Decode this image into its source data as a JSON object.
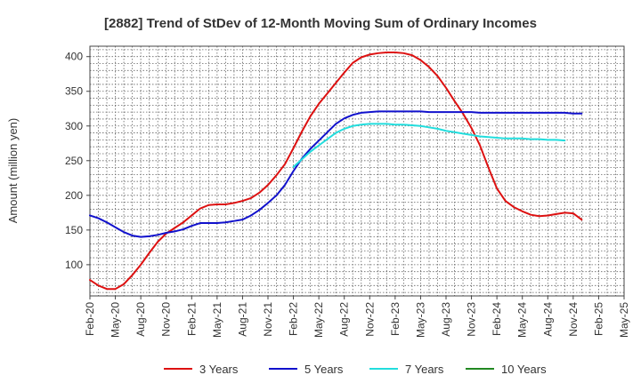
{
  "chart_data": {
    "type": "line",
    "title": "[2882]  Trend of StDev of 12-Month Moving Sum of Ordinary Incomes",
    "xlabel": "",
    "ylabel": "Amount (million yen)",
    "ylim": [
      55,
      415
    ],
    "yticks": [
      100,
      150,
      200,
      250,
      300,
      350,
      400
    ],
    "xrange": [
      0,
      63
    ],
    "xticks": [
      {
        "i": 0,
        "label": "Feb-20"
      },
      {
        "i": 3,
        "label": "May-20"
      },
      {
        "i": 6,
        "label": "Aug-20"
      },
      {
        "i": 9,
        "label": "Nov-20"
      },
      {
        "i": 12,
        "label": "Feb-21"
      },
      {
        "i": 15,
        "label": "May-21"
      },
      {
        "i": 18,
        "label": "Aug-21"
      },
      {
        "i": 21,
        "label": "Nov-21"
      },
      {
        "i": 24,
        "label": "Feb-22"
      },
      {
        "i": 27,
        "label": "May-22"
      },
      {
        "i": 30,
        "label": "Aug-22"
      },
      {
        "i": 33,
        "label": "Nov-22"
      },
      {
        "i": 36,
        "label": "Feb-23"
      },
      {
        "i": 39,
        "label": "May-23"
      },
      {
        "i": 42,
        "label": "Aug-23"
      },
      {
        "i": 45,
        "label": "Nov-23"
      },
      {
        "i": 48,
        "label": "Feb-24"
      },
      {
        "i": 51,
        "label": "May-24"
      },
      {
        "i": 54,
        "label": "Aug-24"
      },
      {
        "i": 57,
        "label": "Nov-24"
      },
      {
        "i": 60,
        "label": "Feb-25"
      },
      {
        "i": 63,
        "label": "May-25"
      }
    ],
    "grid": true,
    "series": [
      {
        "name": "3 Years",
        "color": "#dd1111",
        "start": 0,
        "values": [
          78,
          70,
          65,
          65,
          72,
          85,
          100,
          117,
          133,
          145,
          153,
          161,
          171,
          181,
          186,
          187,
          187,
          189,
          192,
          196,
          204,
          215,
          229,
          245,
          268,
          292,
          314,
          332,
          347,
          362,
          377,
          391,
          399,
          403,
          405,
          406,
          406,
          405,
          402,
          395,
          385,
          372,
          355,
          336,
          318,
          297,
          272,
          240,
          210,
          192,
          183,
          177,
          172,
          170,
          171,
          173,
          175,
          174,
          165
        ]
      },
      {
        "name": "5 Years",
        "color": "#1111cc",
        "start": 0,
        "values": [
          171,
          167,
          161,
          154,
          147,
          142,
          140,
          141,
          143,
          146,
          148,
          151,
          156,
          160,
          160,
          160,
          161,
          163,
          165,
          171,
          179,
          189,
          200,
          215,
          235,
          253,
          267,
          279,
          291,
          303,
          311,
          316,
          319,
          320,
          321,
          321,
          321,
          321,
          321,
          321,
          320,
          320,
          320,
          320,
          320,
          320,
          319,
          319,
          319,
          319,
          319,
          319,
          319,
          319,
          319,
          319,
          319,
          318,
          318
        ]
      },
      {
        "name": "7 Years",
        "color": "#22dddd",
        "start": 24,
        "values": [
          241,
          252,
          263,
          272,
          281,
          290,
          296,
          300,
          302,
          303,
          303,
          303,
          302,
          302,
          301,
          300,
          298,
          296,
          293,
          291,
          289,
          287,
          285,
          284,
          283,
          282,
          282,
          282,
          281,
          281,
          280,
          280,
          279
        ]
      },
      {
        "name": "10 Years",
        "color": "#228822",
        "start": 0,
        "values": []
      }
    ],
    "legend_position": "bottom"
  }
}
